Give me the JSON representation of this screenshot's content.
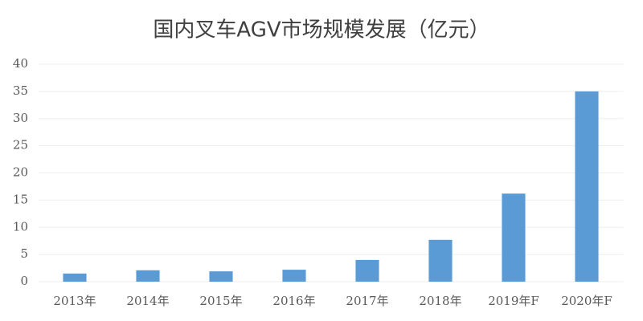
{
  "chart_data": {
    "type": "bar",
    "title": "国内叉车AGV市场规模发展（亿元）",
    "categories": [
      "2013年",
      "2014年",
      "2015年",
      "2016年",
      "2017年",
      "2018年",
      "2019年F",
      "2020年F"
    ],
    "values": [
      1.5,
      2.1,
      1.9,
      2.2,
      4.0,
      7.7,
      16.2,
      35.0
    ],
    "color": "#5b9bd5",
    "ylim": [
      0,
      40
    ],
    "yticks": [
      0,
      5,
      10,
      15,
      20,
      25,
      30,
      35,
      40
    ],
    "grid": true
  }
}
